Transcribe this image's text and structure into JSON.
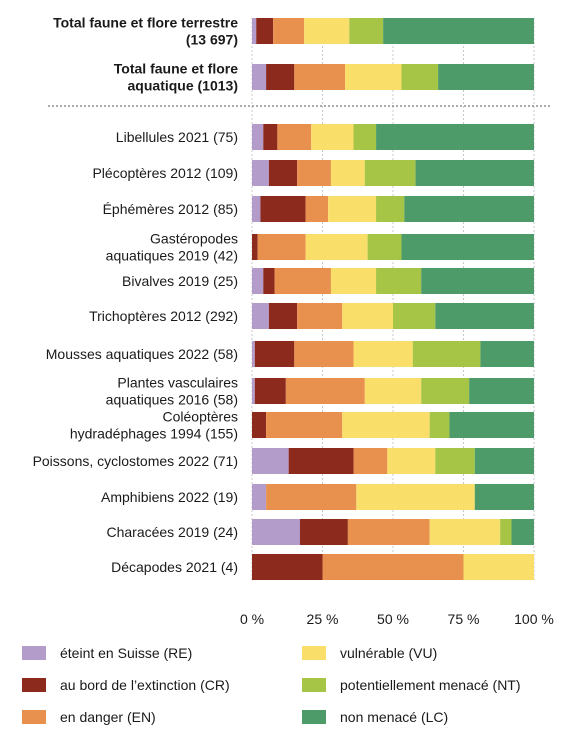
{
  "chart_data": {
    "type": "bar",
    "orientation": "horizontal",
    "stacked": true,
    "title": "",
    "xlabel": "",
    "ylabel": "",
    "xlim": [
      0,
      100
    ],
    "x_ticks": [
      "0 %",
      "25 %",
      "50 %",
      "75 %",
      "100 %"
    ],
    "grid": true,
    "legend_position": "bottom",
    "categories": [
      {
        "label": [
          "Total faune et flore terrestre",
          "(13 697)"
        ],
        "bold": true,
        "group": "total"
      },
      {
        "label": [
          "Total faune et flore",
          "aquatique (1013)"
        ],
        "bold": true,
        "group": "total"
      },
      {
        "label": [
          "Libellules 2021 (75)"
        ],
        "bold": false,
        "group": "detail"
      },
      {
        "label": [
          "Plécoptères 2012 (109)"
        ],
        "bold": false,
        "group": "detail"
      },
      {
        "label": [
          "Éphémères 2012 (85)"
        ],
        "bold": false,
        "group": "detail"
      },
      {
        "label": [
          "Gastéropodes",
          "aquatiques 2019 (42)"
        ],
        "bold": false,
        "group": "detail"
      },
      {
        "label": [
          "Bivalves 2019 (25)"
        ],
        "bold": false,
        "group": "detail"
      },
      {
        "label": [
          "Trichoptères 2012 (292)"
        ],
        "bold": false,
        "group": "detail"
      },
      {
        "label": [
          "Mousses aquatiques 2022 (58)"
        ],
        "bold": false,
        "group": "detail"
      },
      {
        "label": [
          "Plantes vasculaires",
          "aquatiques 2016 (58)"
        ],
        "bold": false,
        "group": "detail"
      },
      {
        "label": [
          "Coléoptères",
          "hydradéphages 1994 (155)"
        ],
        "bold": false,
        "group": "detail"
      },
      {
        "label": [
          "Poissons, cyclostomes 2022 (71)"
        ],
        "bold": false,
        "group": "detail"
      },
      {
        "label": [
          "Amphibiens 2022 (19)"
        ],
        "bold": false,
        "group": "detail"
      },
      {
        "label": [
          "Characées 2019 (24)"
        ],
        "bold": false,
        "group": "detail"
      },
      {
        "label": [
          "Décapodes 2021 (4)"
        ],
        "bold": false,
        "group": "detail"
      }
    ],
    "series": [
      {
        "name": "éteint en Suisse (RE)",
        "color": "#b39bca",
        "values": [
          1.5,
          5,
          4,
          6,
          3,
          0,
          4,
          6,
          1,
          1,
          0,
          13,
          5,
          17,
          0
        ]
      },
      {
        "name": "au bord de l’extinction (CR)",
        "color": "#8c2a1e",
        "values": [
          6,
          10,
          5,
          10,
          16,
          2,
          4,
          10,
          14,
          11,
          5,
          23,
          0,
          17,
          25
        ]
      },
      {
        "name": "en danger (EN)",
        "color": "#e8914f",
        "values": [
          11,
          18,
          12,
          12,
          8,
          17,
          20,
          16,
          21,
          28,
          27,
          12,
          32,
          29,
          50
        ]
      },
      {
        "name": "vulnérable (VU)",
        "color": "#f9df6a",
        "values": [
          16,
          20,
          15,
          12,
          17,
          22,
          16,
          18,
          21,
          20,
          31,
          17,
          42,
          25,
          25
        ]
      },
      {
        "name": "potentiellement menacé (NT)",
        "color": "#a6c445",
        "values": [
          12,
          13,
          8,
          18,
          10,
          12,
          16,
          15,
          24,
          17,
          7,
          14,
          0,
          4,
          0
        ]
      },
      {
        "name": "non menacé (LC)",
        "color": "#4d9b68",
        "values": [
          53.5,
          34,
          56,
          42,
          46,
          47,
          40,
          35,
          19,
          23,
          30,
          21,
          21,
          8,
          0
        ]
      }
    ]
  }
}
